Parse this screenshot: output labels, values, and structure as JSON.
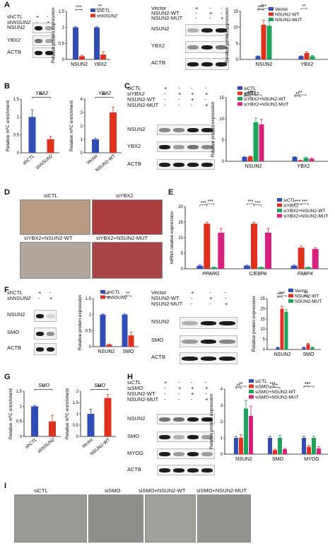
{
  "panel_labels": {
    "A": "A",
    "B": "B",
    "C": "C",
    "D": "D",
    "E": "E",
    "F": "F",
    "G": "G",
    "H": "H",
    "I": "I"
  },
  "colors": {
    "blue": "#2f4db5",
    "red": "#e0301e",
    "green": "#1aa55a",
    "magenta": "#d6217f",
    "err": "#d81b1b"
  },
  "sig": {
    "s1": "*",
    "s2": "**",
    "s3": "***"
  },
  "blots": {
    "a_left": {
      "rows": [
        "NSUN2",
        "YBX2",
        "ACTB"
      ],
      "conds": [
        "shCTL",
        "shNSUN2"
      ],
      "marks": [
        [
          "+",
          "-"
        ],
        [
          "-",
          "+"
        ]
      ]
    },
    "a_right": {
      "rows": [
        "NSUN2",
        "YBX2",
        "ACTB"
      ],
      "conds": [
        "Vector",
        "NSUN2-WT",
        "NSUN2-MUT"
      ],
      "marks": [
        [
          "+",
          "-",
          "-"
        ],
        [
          "-",
          "+",
          "-"
        ],
        [
          "-",
          "-",
          "+"
        ]
      ]
    },
    "c": {
      "rows": [
        "NSUN2",
        "YBX2",
        "ACTB"
      ],
      "conds": [
        "siCTL",
        "siYBX2",
        "NSUN2-WT",
        "NSUN2-MUT"
      ],
      "marks": [
        [
          "+",
          "-",
          "-",
          "-"
        ],
        [
          "-",
          "+",
          "+",
          "+"
        ],
        [
          "-",
          "-",
          "+",
          "-"
        ],
        [
          "-",
          "-",
          "-",
          "+"
        ]
      ]
    },
    "f_left": {
      "rows": [
        "NSUN2",
        "SMO",
        "ACTB"
      ],
      "conds": [
        "shCTL",
        "shNSUN2"
      ],
      "marks": [
        [
          "+",
          "-"
        ],
        [
          "-",
          "+"
        ]
      ]
    },
    "f_right": {
      "rows": [
        "NSUN2",
        "SMO",
        "ACTB"
      ],
      "conds": [
        "Vector",
        "NSUN2-WT",
        "NSUN2-MUT"
      ],
      "marks": [
        [
          "+",
          "-",
          "-"
        ],
        [
          "-",
          "+",
          "-"
        ],
        [
          "-",
          "-",
          "+"
        ]
      ]
    },
    "h": {
      "rows": [
        "NSUN2",
        "SMO",
        "MYOG",
        "ACTB"
      ],
      "conds": [
        "siCTL",
        "siSMO",
        "NSUN2-WT",
        "NSUN2-MUT"
      ],
      "marks": [
        [
          "+",
          "-",
          "-",
          "-"
        ],
        [
          "-",
          "+",
          "+",
          "+"
        ],
        [
          "-",
          "-",
          "+",
          "-"
        ],
        [
          "-",
          "-",
          "-",
          "+"
        ]
      ]
    }
  },
  "micro": {
    "d": [
      "siCTL",
      "siYBX2",
      "siYBX2+NSUN2-WT",
      "siYBX2+NSUN2-MUT"
    ],
    "i": [
      "siCTL",
      "siSMO",
      "siSMO+NSUN2-WT",
      "siSMO+NSUN2-MUT"
    ]
  },
  "chart_data": [
    {
      "id": "a1",
      "type": "bar",
      "ylabel": "Relative protein expression",
      "ylim": [
        0,
        1.5
      ],
      "yticks": [
        0,
        0.5,
        1.0,
        1.5
      ],
      "categories": [
        "NSUN2",
        "YBX2"
      ],
      "series": [
        {
          "name": "shCTL",
          "values": [
            1.0,
            1.0
          ],
          "err": [
            0.02,
            0.02
          ]
        },
        {
          "name": "shNSUN2",
          "values": [
            0.1,
            0.15
          ],
          "err": [
            0.03,
            0.08
          ]
        }
      ],
      "sig": [
        "***",
        "**"
      ],
      "legend": "top-left"
    },
    {
      "id": "a2",
      "type": "bar",
      "ylabel": "Relative protein expression",
      "ylim": [
        0,
        15
      ],
      "yticks": [
        0,
        5,
        10,
        15
      ],
      "categories": [
        "NSUN2",
        "YBX2"
      ],
      "series": [
        {
          "name": "Vector",
          "values": [
            1.0,
            1.0
          ],
          "err": [
            0.1,
            0.1
          ]
        },
        {
          "name": "NSUN2-WT",
          "values": [
            10.8,
            2.0
          ],
          "err": [
            1.5,
            0.4
          ]
        },
        {
          "name": "NSUN2-MUT",
          "values": [
            10.5,
            1.0
          ],
          "err": [
            1.5,
            0.2
          ]
        }
      ],
      "sig": [
        "***",
        "***",
        "**"
      ],
      "legend": "top-right"
    },
    {
      "id": "b1",
      "type": "bar",
      "title": "YBX2",
      "ylabel": "Relative m5C enrichment",
      "ylim": [
        0,
        1.5
      ],
      "yticks": [
        0,
        0.5,
        1.0,
        1.5
      ],
      "categories": [
        "shCTL",
        "shNSUN2"
      ],
      "series": [
        {
          "name": "",
          "values": [
            1.0,
            0.38
          ],
          "err": [
            0.2,
            0.08
          ]
        }
      ],
      "sig": [
        "**"
      ]
    },
    {
      "id": "b2",
      "type": "bar",
      "title": "YBX2",
      "ylabel": "Relative m5C enrichment",
      "ylim": [
        0,
        4
      ],
      "yticks": [
        0,
        1,
        2,
        3,
        4
      ],
      "categories": [
        "Vector",
        "NSUN2-WT"
      ],
      "series": [
        {
          "name": "",
          "values": [
            1.0,
            3.0
          ],
          "err": [
            0.1,
            0.4
          ]
        }
      ],
      "sig": [
        "**"
      ]
    },
    {
      "id": "c1",
      "type": "bar",
      "ylabel": "Relative protein expression",
      "ylim": [
        0,
        15
      ],
      "yticks": [
        0,
        5,
        10,
        15
      ],
      "categories": [
        "NSUN2",
        "YBX2"
      ],
      "series": [
        {
          "name": "siCTL",
          "values": [
            1.0,
            1.0
          ],
          "err": [
            0.1,
            0.1
          ]
        },
        {
          "name": "siYBX2",
          "values": [
            1.1,
            0.2
          ],
          "err": [
            0.1,
            0.05
          ]
        },
        {
          "name": "siYBX2+NSUN2-WT",
          "values": [
            9.2,
            0.8
          ],
          "err": [
            1.0,
            0.2
          ]
        },
        {
          "name": "siYBX2+NSUN2-MUT",
          "values": [
            8.7,
            0.6
          ],
          "err": [
            1.2,
            0.1
          ]
        }
      ],
      "sig": [
        "***",
        "***",
        "***",
        "**",
        "**"
      ],
      "legend": "top-right"
    },
    {
      "id": "e1",
      "type": "bar",
      "ylabel": "mRNA relative expression",
      "ylim": [
        0,
        20
      ],
      "yticks": [
        0,
        5,
        10,
        15,
        20
      ],
      "categories": [
        "PPARG",
        "C/EBPA",
        "FABP4"
      ],
      "series": [
        {
          "name": "siCTL",
          "values": [
            1.0,
            1.0,
            1.0
          ],
          "err": [
            0.3,
            0.2,
            0.2
          ]
        },
        {
          "name": "siYBX2",
          "values": [
            14.5,
            14.5,
            6.8
          ],
          "err": [
            0.5,
            0.5,
            0.5
          ]
        },
        {
          "name": "siYBX2+NSUN2-WT",
          "values": [
            0.5,
            0.5,
            0.5
          ],
          "err": [
            0.1,
            0.1,
            0.1
          ]
        },
        {
          "name": "siYBX2+NSUN2-MUT",
          "values": [
            11.6,
            11.6,
            6.4
          ],
          "err": [
            1.4,
            1.4,
            0.4
          ]
        }
      ],
      "sig": [
        "***",
        "***",
        "***",
        "***",
        "***",
        "***"
      ],
      "legend": "top-right"
    },
    {
      "id": "f1",
      "type": "bar",
      "ylabel": "Relative protein expression",
      "ylim": [
        0,
        1.5
      ],
      "yticks": [
        0,
        0.5,
        1.0,
        1.5
      ],
      "categories": [
        "NSUN2",
        "SMO"
      ],
      "series": [
        {
          "name": "shCTL",
          "values": [
            1.0,
            1.0
          ],
          "err": [
            0.02,
            0.02
          ]
        },
        {
          "name": "shNSUN2",
          "values": [
            0.06,
            0.35
          ],
          "err": [
            0.02,
            0.1
          ]
        }
      ],
      "sig": [
        "***",
        "**"
      ],
      "legend": "top-right"
    },
    {
      "id": "f2",
      "type": "bar",
      "ylabel": "Relative protein expression",
      "ylim": [
        0,
        25
      ],
      "yticks": [
        0,
        5,
        10,
        15,
        20,
        25
      ],
      "categories": [
        "NSUN2",
        "SMO"
      ],
      "series": [
        {
          "name": "Vector",
          "values": [
            1.0,
            1.0
          ],
          "err": [
            0.1,
            0.1
          ]
        },
        {
          "name": "NSUN2-WT",
          "values": [
            20.0,
            2.6
          ],
          "err": [
            1.2,
            0.4
          ]
        },
        {
          "name": "NSUN2-MUT",
          "values": [
            18.5,
            1.0
          ],
          "err": [
            1.0,
            0.2
          ]
        }
      ],
      "sig": [
        "***",
        "***",
        "**"
      ],
      "legend": "top-right"
    },
    {
      "id": "g1",
      "type": "bar",
      "title": "SMO",
      "ylabel": "Relative m5C enrichment",
      "ylim": [
        0,
        1.5
      ],
      "yticks": [
        0,
        0.5,
        1.0,
        1.5
      ],
      "categories": [
        "shCTL",
        "shNSUN2"
      ],
      "series": [
        {
          "name": "",
          "values": [
            1.0,
            0.5
          ],
          "err": [
            0.03,
            0.2
          ]
        }
      ],
      "sig": [
        "*"
      ]
    },
    {
      "id": "g2",
      "type": "bar",
      "title": "SMO",
      "ylabel": "Relative m5C enrichment",
      "ylim": [
        0,
        2.0
      ],
      "yticks": [
        0,
        0.5,
        1.0,
        1.5,
        2.0
      ],
      "categories": [
        "Vector",
        "NSUN2-WT"
      ],
      "series": [
        {
          "name": "",
          "values": [
            1.0,
            1.7
          ],
          "err": [
            0.2,
            0.15
          ]
        }
      ],
      "sig": [
        "**"
      ]
    },
    {
      "id": "h1",
      "type": "bar",
      "ylabel": "Relative protein expression",
      "ylim": [
        0,
        4
      ],
      "yticks": [
        0,
        1,
        2,
        3,
        4
      ],
      "categories": [
        "NSUN2",
        "SMO",
        "MYOG"
      ],
      "series": [
        {
          "name": "siCTL",
          "values": [
            1.0,
            1.0,
            1.0
          ],
          "err": [
            0.1,
            0.1,
            0.1
          ]
        },
        {
          "name": "siSMO",
          "values": [
            1.0,
            0.25,
            0.45
          ],
          "err": [
            0.2,
            0.05,
            0.1
          ]
        },
        {
          "name": "siSMO+NSUN2-WT",
          "values": [
            2.8,
            1.0,
            1.0
          ],
          "err": [
            0.5,
            0.15,
            0.1
          ]
        },
        {
          "name": "siSMO+NSUN2-MUT",
          "values": [
            2.35,
            0.3,
            0.35
          ],
          "err": [
            0.6,
            0.05,
            0.1
          ]
        }
      ],
      "sig": [
        "**",
        "**",
        "***",
        "***",
        "**",
        "**"
      ],
      "legend": "top-right"
    }
  ]
}
